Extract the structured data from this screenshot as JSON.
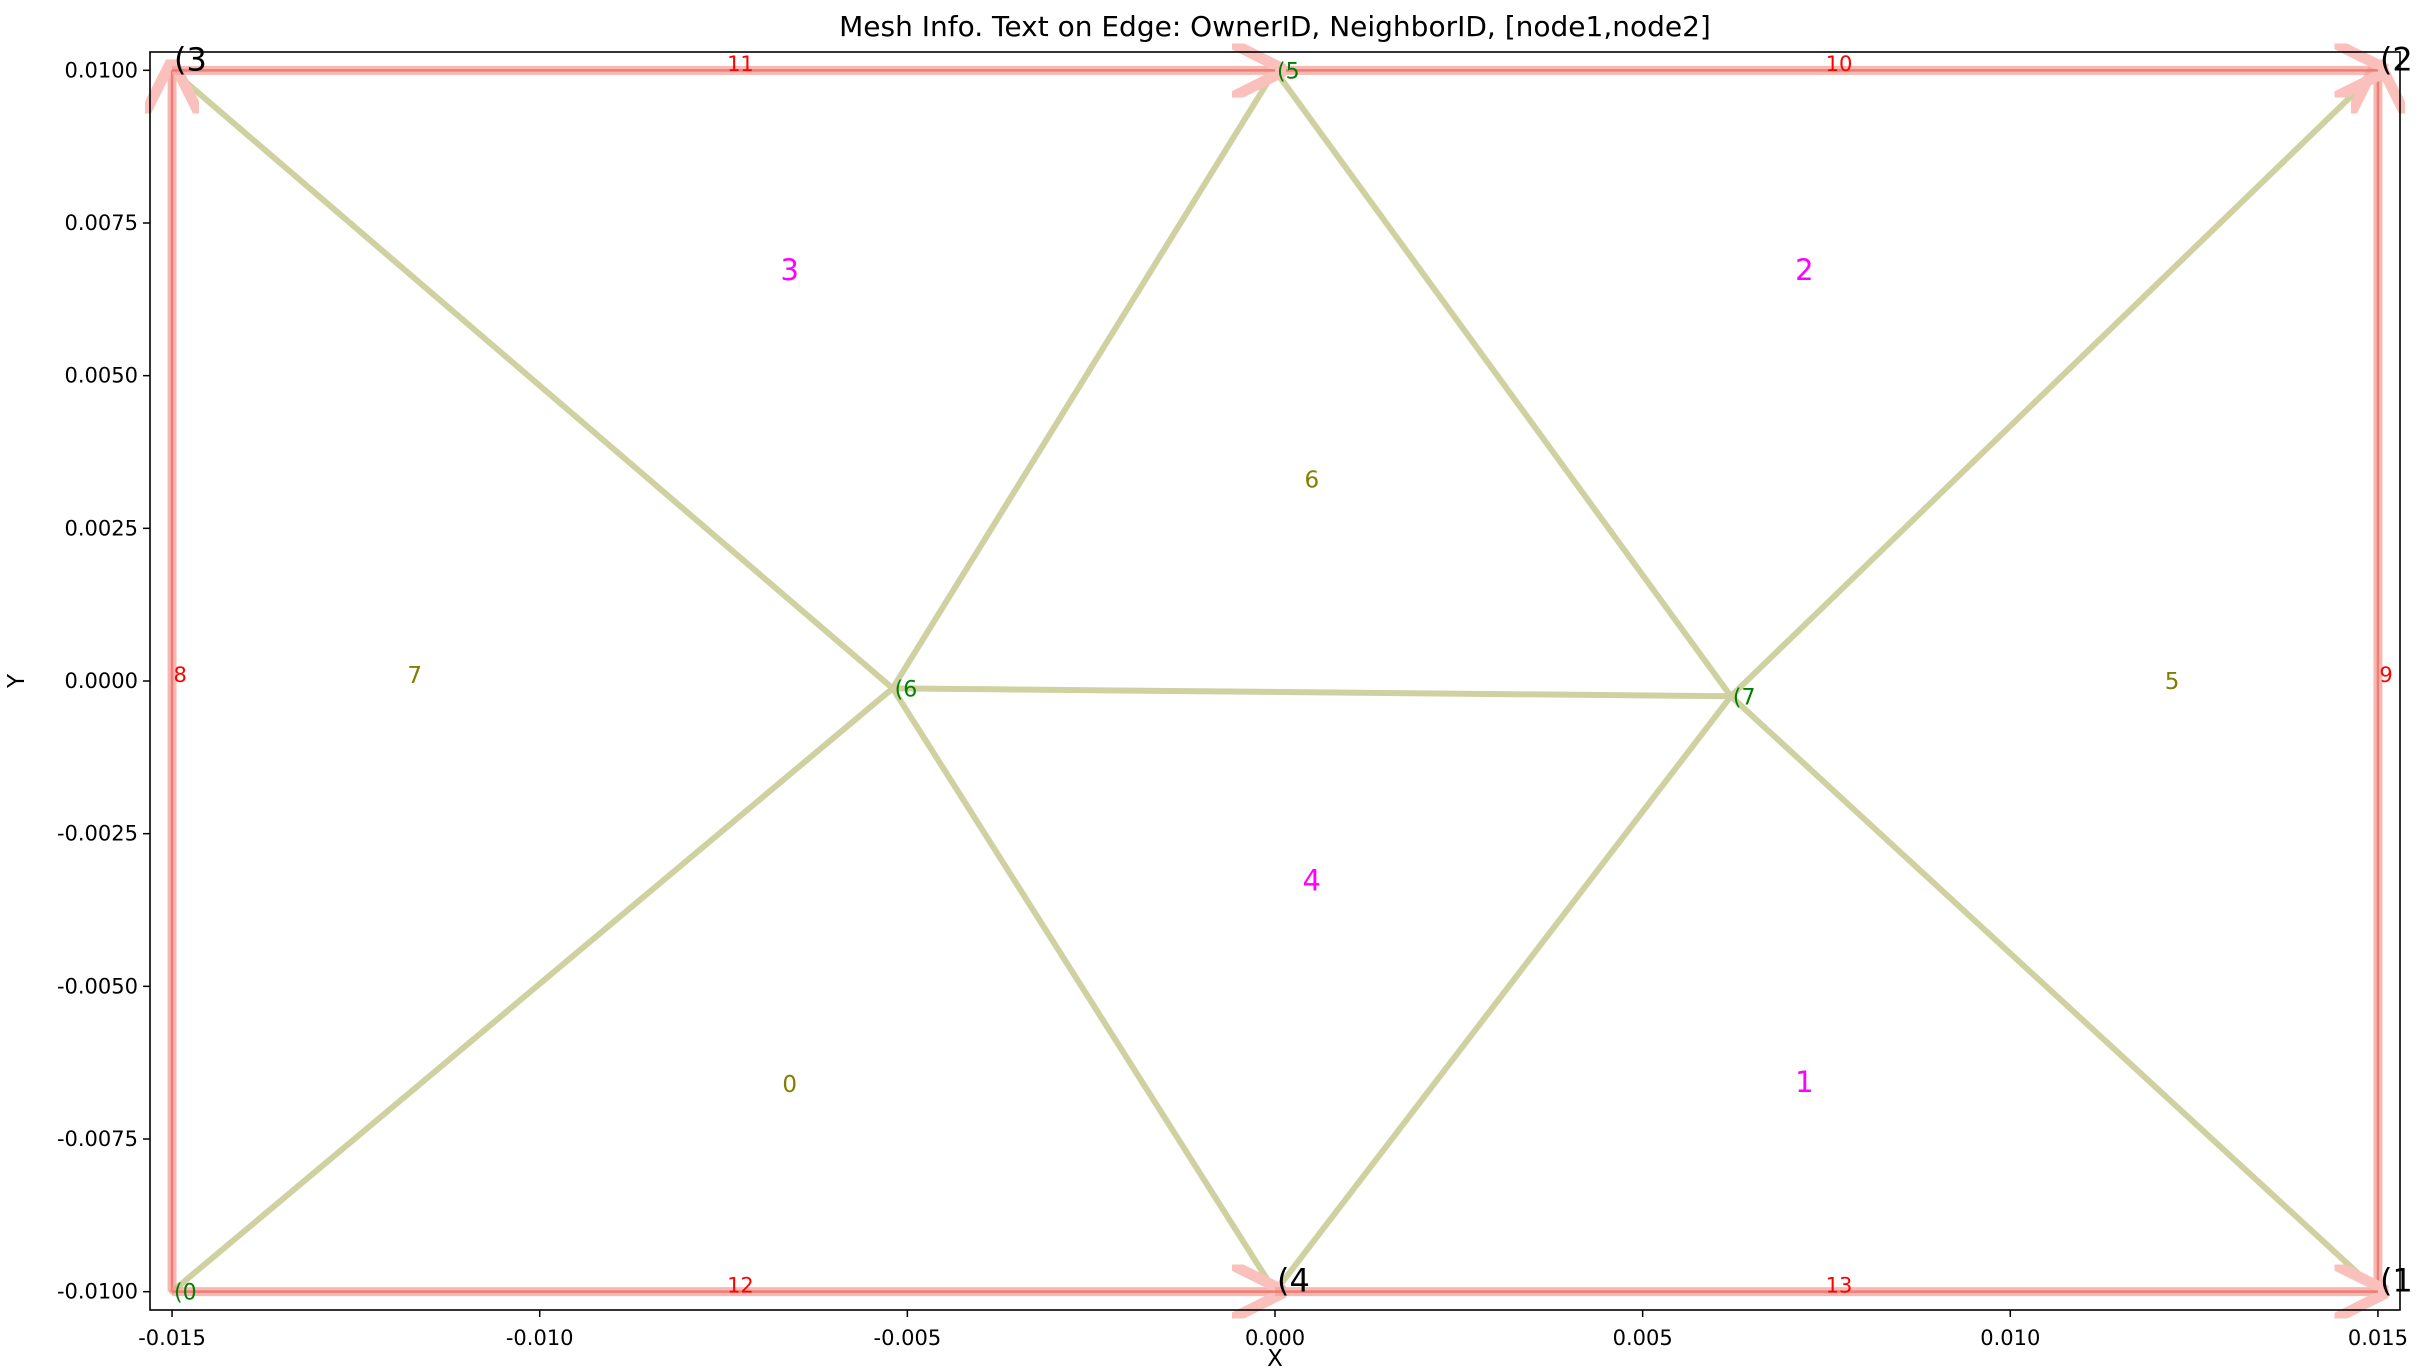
{
  "chart_data": {
    "type": "mesh",
    "title": "Mesh Info. Text on Edge: OwnerID, NeighborID, [node1,node2]",
    "xlabel": "X",
    "ylabel": "Y",
    "xlim": [
      -0.0153,
      0.0153
    ],
    "ylim": [
      -0.0103,
      0.0103
    ],
    "x_ticks": [
      -0.015,
      -0.01,
      -0.005,
      0.0,
      0.005,
      0.01,
      0.015
    ],
    "x_tick_labels": [
      "-0.015",
      "-0.010",
      "-0.005",
      "0.000",
      "0.005",
      "0.010",
      "0.015"
    ],
    "y_ticks": [
      0.01,
      0.0075,
      0.005,
      0.0025,
      0.0,
      -0.0025,
      -0.005,
      -0.0075,
      -0.01
    ],
    "y_tick_labels": [
      "0.0100",
      "0.0075",
      "0.0050",
      "0.0025",
      "0.0000",
      "-0.0025",
      "-0.0050",
      "-0.0075",
      "-0.0100"
    ],
    "colors": {
      "mesh_edge": "#cfd1a0",
      "boundary_edge": "#f4a09a",
      "boundary_label": "#ff0000",
      "corner_node_label": "#000000",
      "interior_node_label": "#008000",
      "cell_magenta": "#ff00ff",
      "cell_olive": "#808000"
    },
    "nodes": [
      {
        "id": 0,
        "x": -0.015,
        "y": -0.01,
        "label": "(0",
        "kind": "interior"
      },
      {
        "id": 1,
        "x": 0.015,
        "y": -0.01,
        "label": "(1",
        "kind": "corner"
      },
      {
        "id": 2,
        "x": 0.015,
        "y": 0.01,
        "label": "(2",
        "kind": "corner"
      },
      {
        "id": 3,
        "x": -0.015,
        "y": 0.01,
        "label": "(3",
        "kind": "corner"
      },
      {
        "id": 4,
        "x": 0.0,
        "y": -0.01,
        "label": "(4",
        "kind": "corner"
      },
      {
        "id": 5,
        "x": 0.0,
        "y": 0.01,
        "label": "(5",
        "kind": "interior"
      },
      {
        "id": 6,
        "x": -0.0052,
        "y": -0.00012,
        "label": "(6",
        "kind": "interior"
      },
      {
        "id": 7,
        "x": 0.0062,
        "y": -0.00025,
        "label": "(7",
        "kind": "interior"
      }
    ],
    "interior_edges": [
      [
        3,
        6
      ],
      [
        5,
        6
      ],
      [
        0,
        6
      ],
      [
        4,
        6
      ],
      [
        6,
        7
      ],
      [
        5,
        7
      ],
      [
        2,
        7
      ],
      [
        4,
        7
      ],
      [
        1,
        7
      ]
    ],
    "boundary_edges": [
      {
        "from": 0,
        "to": 3,
        "label": "8",
        "label_at": [
          -0.01489,
          0.0001
        ]
      },
      {
        "from": 1,
        "to": 2,
        "label": "9",
        "label_at": [
          0.01511,
          0.0001
        ]
      },
      {
        "from": 5,
        "to": 2,
        "label": "10",
        "label_at": [
          0.00767,
          0.0101
        ]
      },
      {
        "from": 3,
        "to": 5,
        "label": "11",
        "label_at": [
          -0.00727,
          0.0101
        ]
      },
      {
        "from": 0,
        "to": 4,
        "label": "12",
        "label_at": [
          -0.00727,
          -0.0099
        ]
      },
      {
        "from": 4,
        "to": 1,
        "label": "13",
        "label_at": [
          0.00767,
          -0.0099
        ]
      }
    ],
    "cells": [
      {
        "label": "0",
        "x": -0.0066,
        "y": -0.0066,
        "color": "olive"
      },
      {
        "label": "1",
        "x": 0.0072,
        "y": -0.0066,
        "color": "magenta"
      },
      {
        "label": "2",
        "x": 0.0072,
        "y": 0.0067,
        "color": "magenta"
      },
      {
        "label": "3",
        "x": -0.0066,
        "y": 0.0067,
        "color": "magenta"
      },
      {
        "label": "4",
        "x": 0.0005,
        "y": -0.0033,
        "color": "magenta"
      },
      {
        "label": "5",
        "x": 0.0122,
        "y": 0.0,
        "color": "olive"
      },
      {
        "label": "6",
        "x": 0.0005,
        "y": 0.0033,
        "color": "olive"
      },
      {
        "label": "7",
        "x": -0.0117,
        "y": 0.0001,
        "color": "olive"
      }
    ]
  }
}
